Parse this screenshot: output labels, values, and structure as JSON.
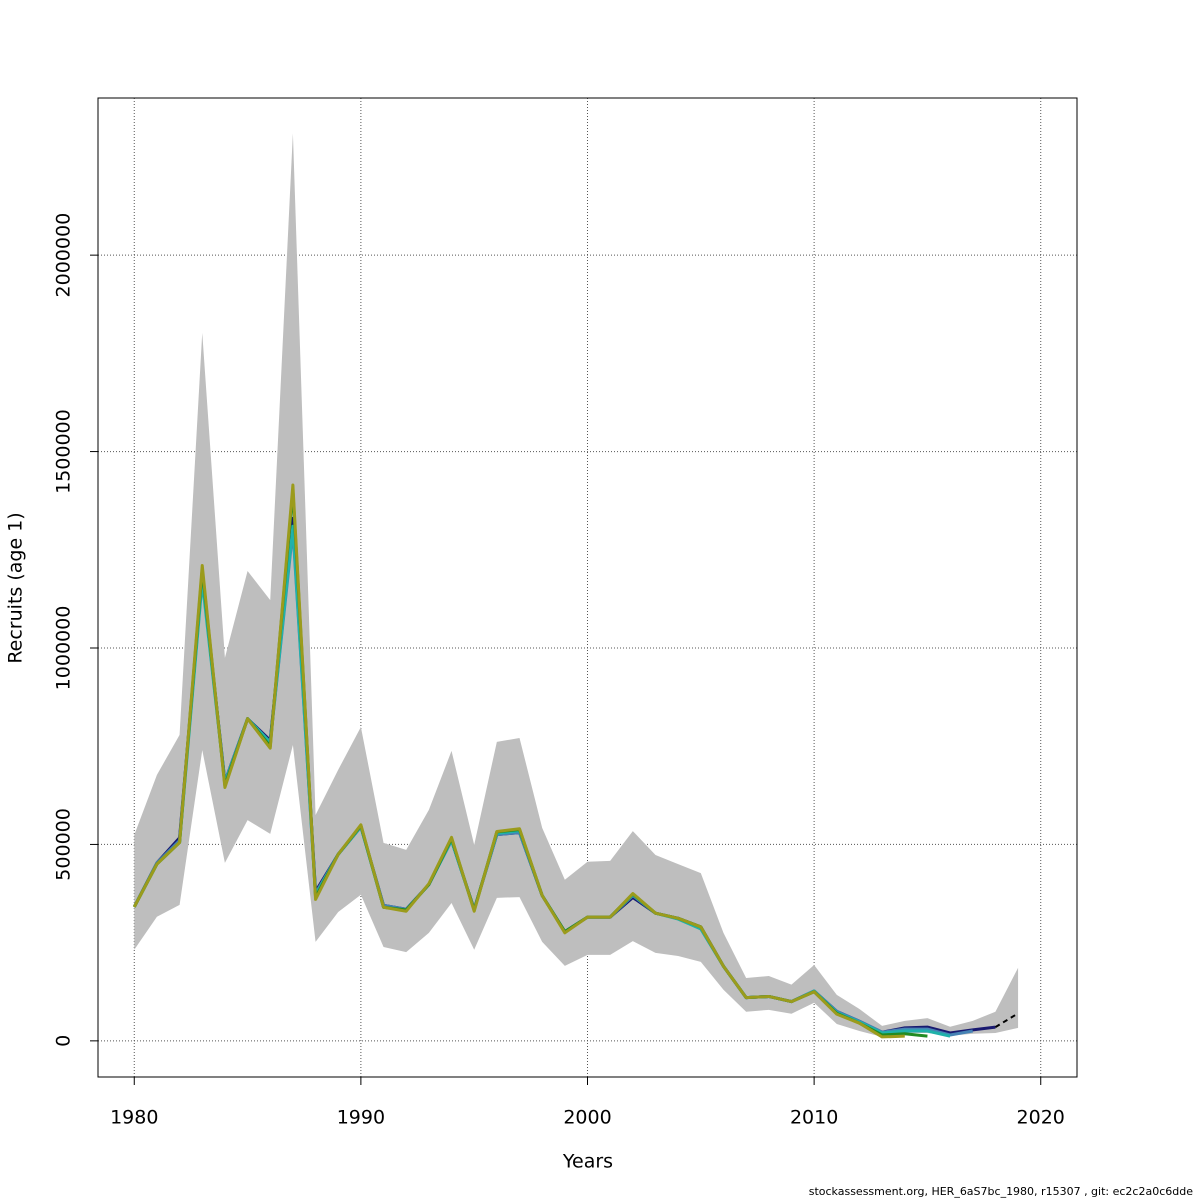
{
  "chart_data": {
    "type": "line",
    "x_label": "Years",
    "y_label": "Recruits (age 1)",
    "footnote": "stockassessment.org, HER_6aS7bc_1980, r15307 , git: ec2c2a0c6dde",
    "x": [
      1980,
      1981,
      1982,
      1983,
      1984,
      1985,
      1986,
      1987,
      1988,
      1989,
      1990,
      1991,
      1992,
      1993,
      1994,
      1995,
      1996,
      1997,
      1998,
      1999,
      2000,
      2001,
      2002,
      2003,
      2004,
      2005,
      2006,
      2007,
      2008,
      2009,
      2010,
      2011,
      2012,
      2013,
      2014,
      2015,
      2016,
      2017,
      2018,
      2019
    ],
    "xlim": [
      1978.4,
      2021.6
    ],
    "ylim": [
      -92000,
      2400000
    ],
    "xticks": [
      1980,
      1990,
      2000,
      2010,
      2020
    ],
    "yticks": [
      0,
      500000,
      1000000,
      1500000,
      2000000
    ],
    "grid": true,
    "band": {
      "color": "#bebebe",
      "upper": [
        524000,
        677000,
        779000,
        1802000,
        975000,
        1196000,
        1122000,
        2310000,
        575000,
        690000,
        799000,
        504000,
        486000,
        588000,
        738000,
        499000,
        761000,
        771000,
        542000,
        410000,
        456000,
        458000,
        534000,
        473000,
        450000,
        427000,
        275000,
        160000,
        165000,
        143000,
        193000,
        117000,
        81000,
        38000,
        51000,
        58000,
        36000,
        51000,
        74000,
        186000
      ],
      "lower": [
        232000,
        316000,
        346000,
        740000,
        453000,
        562000,
        527000,
        753000,
        252000,
        328000,
        372000,
        239000,
        226000,
        275000,
        351000,
        232000,
        364000,
        366000,
        252000,
        191000,
        219000,
        219000,
        254000,
        224000,
        216000,
        201000,
        130000,
        74000,
        79000,
        69000,
        97000,
        43000,
        25000,
        10000,
        20000,
        20000,
        13000,
        18000,
        20000,
        33000
      ]
    },
    "series": [
      {
        "color": "#191970",
        "values": [
          341000,
          453000,
          517000,
          1180000,
          660000,
          820000,
          765000,
          1330000,
          380000,
          475000,
          545000,
          345000,
          335000,
          398000,
          510000,
          335000,
          525000,
          530000,
          370000,
          278000,
          315000,
          315000,
          365000,
          325000,
          312000,
          290000,
          190000,
          110000,
          113000,
          100000,
          127000,
          75000,
          50000,
          22000,
          33000,
          35000,
          20000,
          28000,
          35000,
          null
        ]
      },
      {
        "color": "#4682b4",
        "values": [
          341000,
          453000,
          510000,
          1180000,
          660000,
          820000,
          760000,
          1300000,
          375000,
          475000,
          545000,
          345000,
          335000,
          398000,
          510000,
          335000,
          525000,
          530000,
          370000,
          278000,
          315000,
          315000,
          370000,
          325000,
          312000,
          285000,
          190000,
          110000,
          113000,
          100000,
          127000,
          75000,
          50000,
          22000,
          30000,
          30000,
          15000,
          25000,
          null,
          null
        ]
      },
      {
        "color": "#20b2aa",
        "values": [
          341000,
          450000,
          505000,
          1170000,
          655000,
          820000,
          760000,
          1310000,
          370000,
          475000,
          545000,
          340000,
          333000,
          398000,
          510000,
          333000,
          528000,
          535000,
          370000,
          278000,
          315000,
          315000,
          372000,
          325000,
          310000,
          285000,
          190000,
          110000,
          113000,
          100000,
          127000,
          72000,
          48000,
          20000,
          25000,
          25000,
          12000,
          null,
          null,
          null
        ]
      },
      {
        "color": "#228b22",
        "values": [
          341000,
          450000,
          505000,
          1200000,
          650000,
          820000,
          750000,
          1400000,
          365000,
          475000,
          548000,
          340000,
          333000,
          398000,
          515000,
          333000,
          532000,
          538000,
          370000,
          278000,
          315000,
          315000,
          374000,
          325000,
          312000,
          290000,
          190000,
          110000,
          113000,
          100000,
          125000,
          70000,
          45000,
          15000,
          18000,
          12000,
          null,
          null,
          null,
          null
        ]
      },
      {
        "color": "#9b9b1c",
        "values": [
          341000,
          450000,
          505000,
          1210000,
          645000,
          820000,
          745000,
          1415000,
          360000,
          475000,
          550000,
          340000,
          330000,
          400000,
          518000,
          330000,
          533000,
          540000,
          370000,
          275000,
          315000,
          315000,
          375000,
          325000,
          312000,
          290000,
          190000,
          110000,
          113000,
          100000,
          125000,
          68000,
          45000,
          10000,
          12000,
          null,
          null,
          null,
          null,
          null
        ]
      },
      {
        "color": "#000000",
        "dashed": true,
        "values": [
          null,
          null,
          null,
          null,
          null,
          null,
          null,
          null,
          null,
          null,
          null,
          null,
          null,
          null,
          null,
          null,
          null,
          null,
          null,
          null,
          null,
          null,
          null,
          null,
          null,
          null,
          null,
          null,
          null,
          null,
          null,
          null,
          null,
          null,
          null,
          null,
          null,
          null,
          35000,
          70000
        ]
      }
    ]
  }
}
